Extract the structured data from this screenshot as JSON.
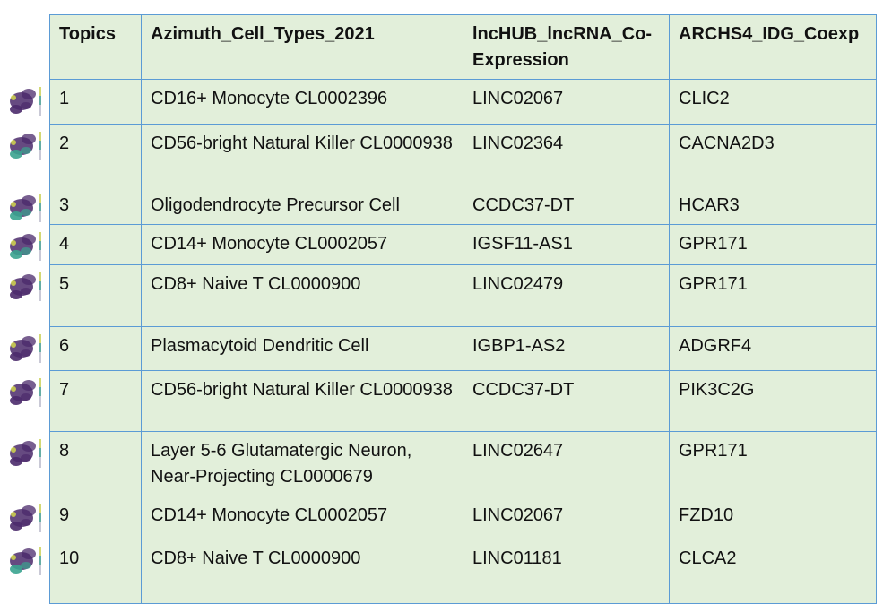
{
  "table": {
    "headers": [
      "Topics",
      "Azimuth_Cell_Types_2021",
      "lncHUB_lncRNA_Co-Expression",
      "ARCHS4_IDG_Coexp"
    ],
    "rows": [
      {
        "topic": "1",
        "cell_type": "CD16+ Monocyte CL0002396",
        "lncrna": "LINC02067",
        "idg": "CLIC2"
      },
      {
        "topic": "2",
        "cell_type": "CD56-bright Natural Killer CL0000938",
        "lncrna": "LINC02364",
        "idg": "CACNA2D3"
      },
      {
        "topic": "3",
        "cell_type": "Oligodendrocyte Precursor Cell",
        "lncrna": "CCDC37-DT",
        "idg": "HCAR3"
      },
      {
        "topic": "4",
        "cell_type": "CD14+ Monocyte CL0002057",
        "lncrna": "IGSF11-AS1",
        "idg": "GPR171"
      },
      {
        "topic": "5",
        "cell_type": "CD8+ Naive T CL0000900",
        "lncrna": "LINC02479",
        "idg": "GPR171"
      },
      {
        "topic": "6",
        "cell_type": "Plasmacytoid Dendritic Cell",
        "lncrna": "IGBP1-AS2",
        "idg": "ADGRF4"
      },
      {
        "topic": "7",
        "cell_type": "CD56-bright Natural Killer CL0000938",
        "lncrna": "CCDC37-DT",
        "idg": "PIK3C2G"
      },
      {
        "topic": "8",
        "cell_type": "Layer 5-6 Glutamatergic Neuron, Near-Projecting CL0000679",
        "lncrna": "LINC02647",
        "idg": "GPR171"
      },
      {
        "topic": "9",
        "cell_type": "CD14+ Monocyte CL0002057",
        "lncrna": "LINC02067",
        "idg": "FZD10"
      },
      {
        "topic": "10",
        "cell_type": "CD8+ Naive T CL0000900",
        "lncrna": "LINC01181",
        "idg": "CLCA2"
      }
    ]
  },
  "colors": {
    "cell_background": "#e2efda",
    "grid_line": "#5b9bd5",
    "umap_purple": "#4b2a6b",
    "umap_teal": "#3aa38f",
    "umap_yellow": "#d9e04a"
  },
  "thumbnails": [
    {
      "icon": "umap-thumbnail-icon",
      "highlight": "purple"
    },
    {
      "icon": "umap-thumbnail-icon",
      "highlight": "teal"
    },
    {
      "icon": "umap-thumbnail-icon",
      "highlight": "teal"
    },
    {
      "icon": "umap-thumbnail-icon",
      "highlight": "teal"
    },
    {
      "icon": "umap-thumbnail-icon",
      "highlight": "purple"
    },
    {
      "icon": "umap-thumbnail-icon",
      "highlight": "purple"
    },
    {
      "icon": "umap-thumbnail-icon",
      "highlight": "purple"
    },
    {
      "icon": "umap-thumbnail-icon",
      "highlight": "purple"
    },
    {
      "icon": "umap-thumbnail-icon",
      "highlight": "purple"
    },
    {
      "icon": "umap-thumbnail-icon",
      "highlight": "teal"
    }
  ]
}
